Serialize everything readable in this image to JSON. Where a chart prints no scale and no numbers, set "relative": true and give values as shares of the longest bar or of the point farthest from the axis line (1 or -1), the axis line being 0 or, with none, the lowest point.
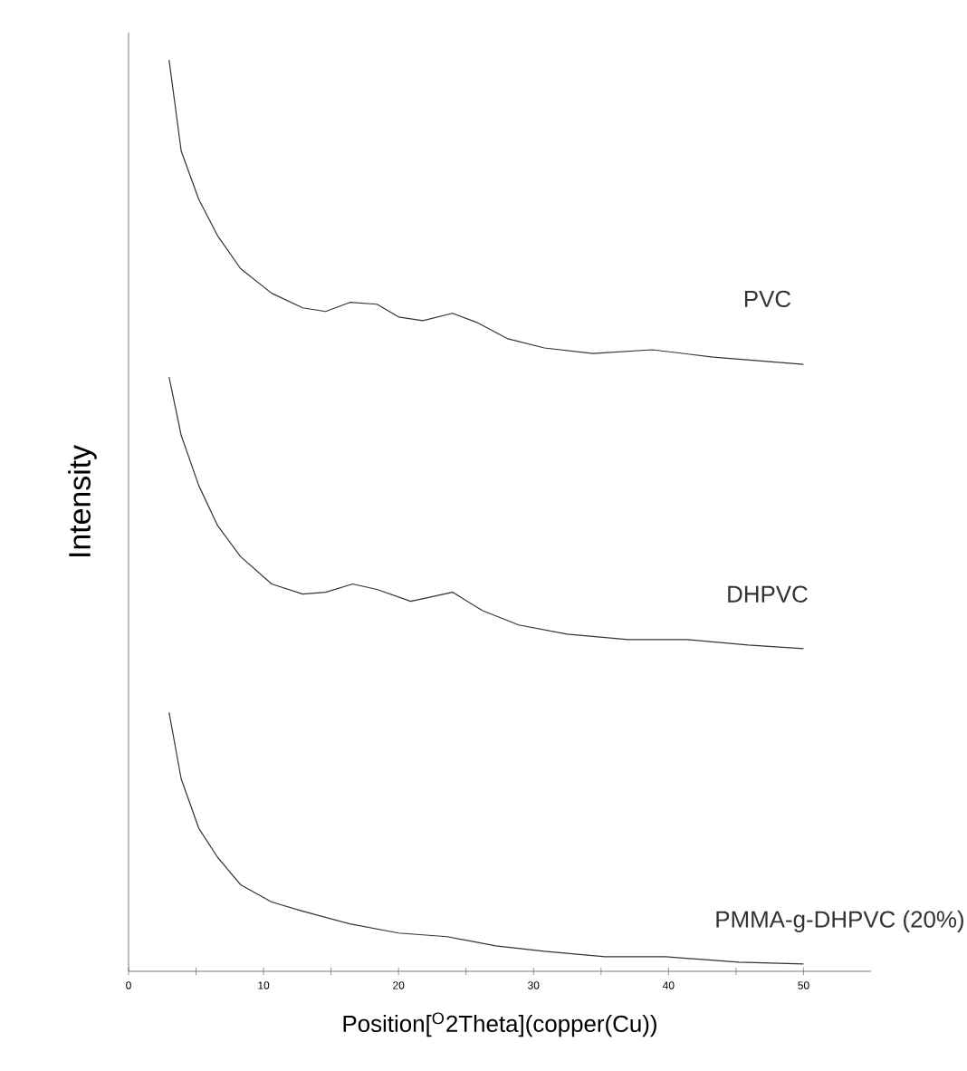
{
  "chart_data": {
    "type": "line",
    "relative": true,
    "xlabel": "Position[$^{O}$2Theta](copper(Cu))",
    "ylabel": "Intensity",
    "xlim": [
      0,
      55
    ],
    "xticks": [
      0,
      {
        "value": 5,
        "label": null
      },
      10,
      {
        "value": 15,
        "label": null
      },
      20,
      {
        "value": 25,
        "label": null
      },
      30,
      {
        "value": 35,
        "label": null
      },
      40,
      {
        "value": 45,
        "label": null
      },
      50
    ],
    "grid": false,
    "marker": "none",
    "line_style": "solid",
    "series": [
      {
        "name": "PVC",
        "color": "#333333",
        "x": [
          3,
          3.9,
          5.2,
          6.6,
          8.3,
          10.6,
          12.9,
          14.6,
          16.4,
          18.4,
          20,
          21.8,
          24,
          25.8,
          28.1,
          30.8,
          34.4,
          38.8,
          43.3,
          50
        ],
        "values": [
          1.0,
          0.9,
          0.847,
          0.807,
          0.771,
          0.744,
          0.728,
          0.724,
          0.734,
          0.732,
          0.718,
          0.714,
          0.722,
          0.712,
          0.694,
          0.684,
          0.678,
          0.682,
          0.674,
          0.666
        ]
      },
      {
        "name": "DHPVC",
        "color": "#333333",
        "x": [
          3,
          3.9,
          5.2,
          6.6,
          8.3,
          10.6,
          12.9,
          14.6,
          16.6,
          18.4,
          20.9,
          24,
          26.2,
          28.9,
          32.5,
          37,
          41.4,
          45.9,
          50
        ],
        "values": [
          0.652,
          0.588,
          0.533,
          0.489,
          0.455,
          0.425,
          0.414,
          0.416,
          0.425,
          0.419,
          0.406,
          0.416,
          0.396,
          0.38,
          0.37,
          0.364,
          0.364,
          0.358,
          0.354
        ]
      },
      {
        "name": "PMMA-g-DHPVC (20%)",
        "color": "#333333",
        "x": [
          3,
          3.9,
          5.2,
          6.6,
          8.3,
          10.6,
          12.9,
          16.4,
          20,
          23.6,
          27.2,
          30.8,
          35.3,
          39.8,
          45.2,
          50
        ],
        "values": [
          0.284,
          0.211,
          0.157,
          0.125,
          0.095,
          0.076,
          0.066,
          0.052,
          0.042,
          0.038,
          0.028,
          0.022,
          0.016,
          0.016,
          0.01,
          0.008
        ]
      }
    ]
  }
}
